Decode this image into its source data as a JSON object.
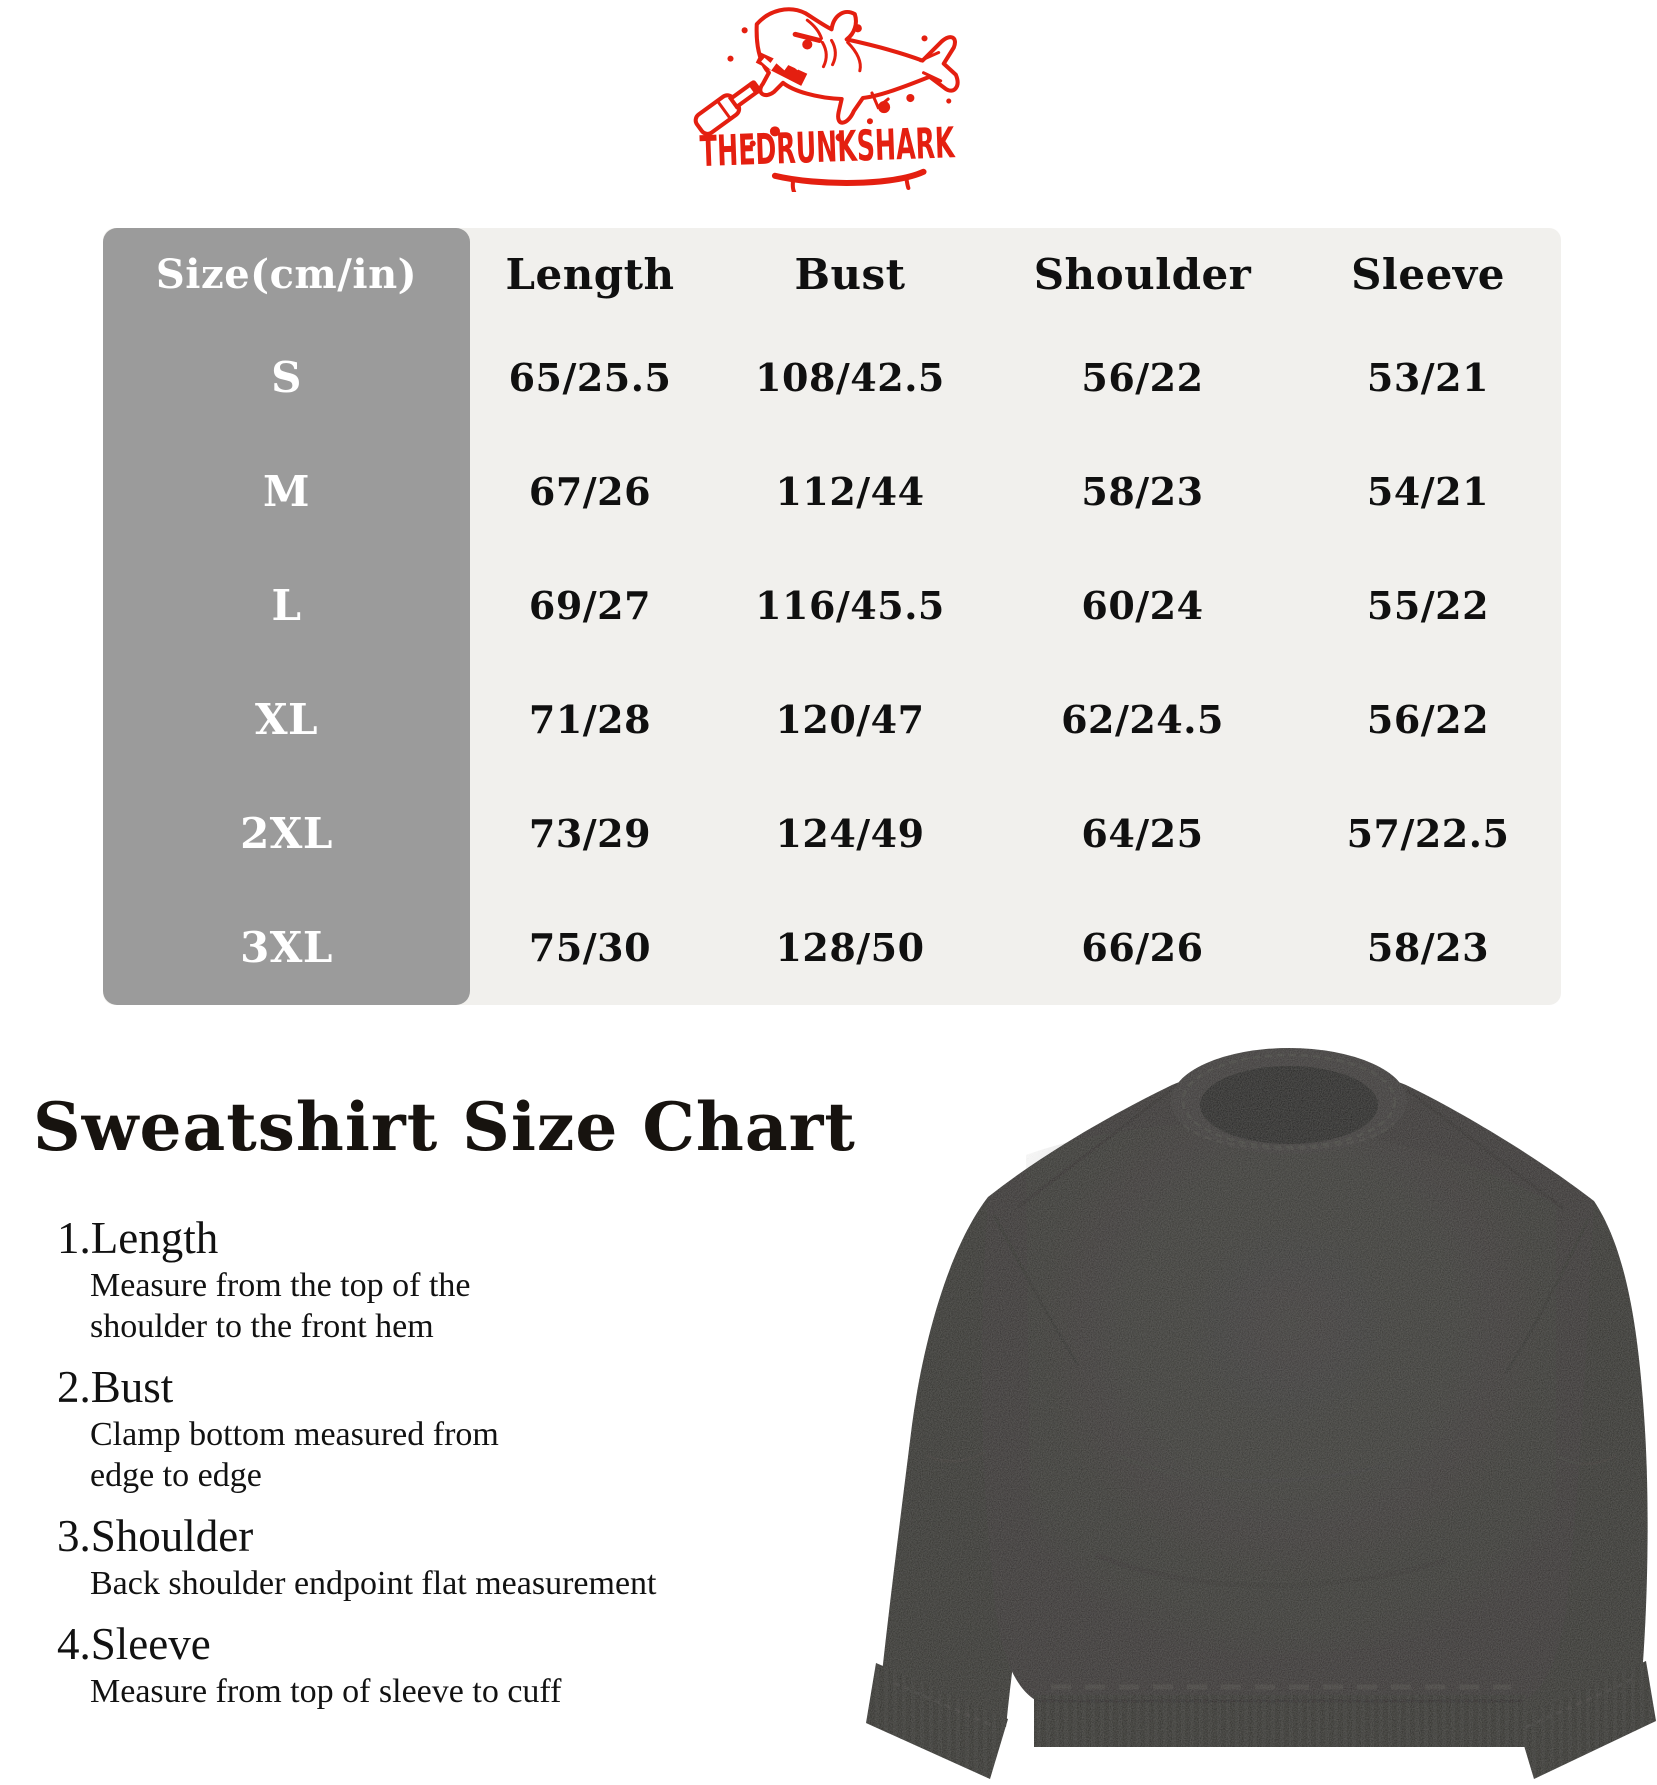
{
  "logo": {
    "brand_text": "THEDRUNKSHARK",
    "color": "#e41f10"
  },
  "size_table": {
    "unit_header": "Size(cm/in)",
    "columns": [
      "Length",
      "Bust",
      "Shoulder",
      "Sleeve"
    ],
    "rows": [
      {
        "size": "S",
        "values": [
          "65/25.5",
          "108/42.5",
          "56/22",
          "53/21"
        ]
      },
      {
        "size": "M",
        "values": [
          "67/26",
          "112/44",
          "58/23",
          "54/21"
        ]
      },
      {
        "size": "L",
        "values": [
          "69/27",
          "116/45.5",
          "60/24",
          "55/22"
        ]
      },
      {
        "size": "XL",
        "values": [
          "71/28",
          "120/47",
          "62/24.5",
          "56/22"
        ]
      },
      {
        "size": "2XL",
        "values": [
          "73/29",
          "124/49",
          "64/25",
          "57/22.5"
        ]
      },
      {
        "size": "3XL",
        "values": [
          "75/30",
          "128/50",
          "66/26",
          "58/23"
        ]
      }
    ],
    "colors": {
      "size_column_bg": "#9b9b9b",
      "table_bg": "#f1f0ed",
      "size_text": "#ffffff",
      "data_text": "#101010"
    }
  },
  "section": {
    "title": "Sweatshirt Size Chart"
  },
  "measure_guide": {
    "items": [
      {
        "heading": "1.Length",
        "lines": [
          "Measure from the top of the",
          "shoulder to the front hem"
        ]
      },
      {
        "heading": "2.Bust",
        "lines": [
          "Clamp bottom measured from",
          "edge to edge"
        ]
      },
      {
        "heading": "3.Shoulder",
        "lines": [
          "Back shoulder endpoint flat measurement"
        ]
      },
      {
        "heading": "4.Sleeve",
        "lines": [
          "Measure from top of sleeve to cuff"
        ]
      }
    ]
  },
  "product_image": {
    "alt": "black washed crewneck sweatshirt",
    "color": "#2d2c2a"
  }
}
